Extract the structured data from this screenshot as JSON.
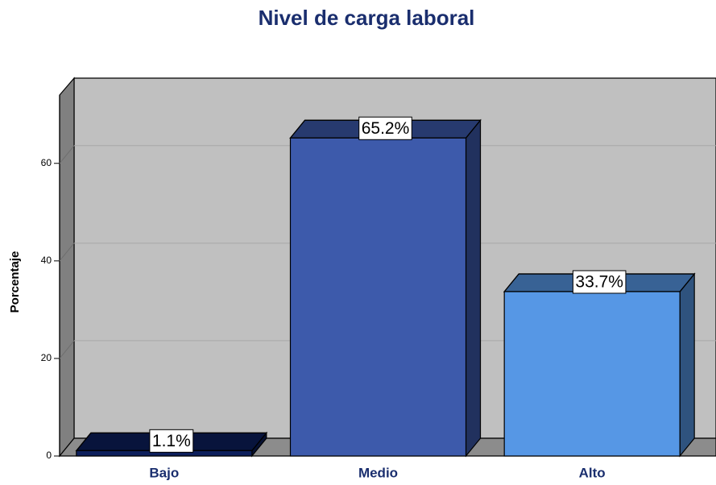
{
  "chart_data": {
    "type": "bar3d",
    "title": "Nivel de carga laboral",
    "y_label": "Porcentaje",
    "categories": [
      "Bajo",
      "Medio",
      "Alto"
    ],
    "values": [
      1.1,
      65.2,
      33.7
    ],
    "value_labels": [
      "1.1%",
      "65.2%",
      "33.7%"
    ],
    "colors": [
      "#0d1f5c",
      "#3d5aab",
      "#5697e5"
    ],
    "ylim": [
      0,
      74
    ],
    "yticks": [
      0,
      20,
      40,
      60
    ],
    "grid": true
  }
}
